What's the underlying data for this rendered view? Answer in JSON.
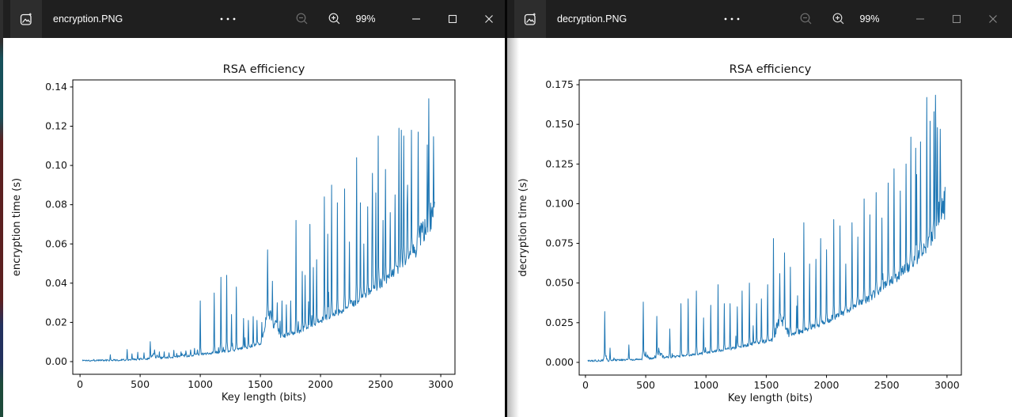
{
  "windows": [
    {
      "title": "encryption.PNG",
      "zoom_level": "99%"
    },
    {
      "title": "decryption.PNG",
      "zoom_level": "99%"
    }
  ],
  "icons": {
    "app": "photos-app-icon",
    "more": "see-more-icon",
    "zoom_out": "zoom-out-icon",
    "zoom_in": "zoom-in-icon",
    "minimize": "minimize-icon",
    "maximize": "maximize-icon",
    "close": "close-icon"
  },
  "chart_data": [
    {
      "type": "line",
      "title": "RSA efficiency",
      "xlabel": "Key length (bits)",
      "ylabel": "encryption time (s)",
      "line_color": "#1f77b4",
      "legend": "none",
      "grid": false,
      "xlim": [
        -60,
        3118
      ],
      "ylim": [
        -0.00645,
        0.1436
      ],
      "xticks": [
        0,
        500,
        1000,
        1500,
        2000,
        2500,
        3000
      ],
      "xtick_labels": [
        "0",
        "500",
        "1000",
        "1500",
        "2000",
        "2500",
        "3000"
      ],
      "yticks": [
        0.0,
        0.02,
        0.04,
        0.06,
        0.08,
        0.1,
        0.12,
        0.14
      ],
      "ytick_labels": [
        "0.00",
        "0.02",
        "0.04",
        "0.06",
        "0.08",
        "0.10",
        "0.12",
        "0.14"
      ],
      "x_start": 20,
      "x_end": 2950,
      "x_step": 4,
      "seed": 1337,
      "noise": {
        "base": 0.00045,
        "scale": 0.055,
        "minor_prob": 0.035,
        "minor_scale": 1.0
      },
      "baseline": [
        [
          20,
          0.0006
        ],
        [
          300,
          0.0008
        ],
        [
          500,
          0.0012
        ],
        [
          700,
          0.002
        ],
        [
          900,
          0.003
        ],
        [
          1100,
          0.0045
        ],
        [
          1300,
          0.006
        ],
        [
          1500,
          0.009
        ],
        [
          1600,
          0.011
        ],
        [
          1700,
          0.013
        ],
        [
          1800,
          0.015
        ],
        [
          1900,
          0.018
        ],
        [
          2000,
          0.021
        ],
        [
          2100,
          0.024
        ],
        [
          2200,
          0.027
        ],
        [
          2300,
          0.031
        ],
        [
          2400,
          0.035
        ],
        [
          2500,
          0.04
        ],
        [
          2600,
          0.045
        ],
        [
          2700,
          0.052
        ],
        [
          2800,
          0.059
        ],
        [
          2870,
          0.065
        ],
        [
          2920,
          0.072
        ],
        [
          2950,
          0.079
        ]
      ],
      "bumps": [
        [
          610,
          50,
          0.002
        ],
        [
          1560,
          50,
          0.018
        ],
        [
          1620,
          60,
          0.008
        ],
        [
          2840,
          50,
          0.006
        ],
        [
          2890,
          40,
          0.007
        ]
      ],
      "spikes": [
        [
          250,
          0.0035
        ],
        [
          390,
          0.0062
        ],
        [
          430,
          0.004
        ],
        [
          480,
          0.0048
        ],
        [
          530,
          0.0045
        ],
        [
          585,
          0.0102
        ],
        [
          620,
          0.006
        ],
        [
          660,
          0.005
        ],
        [
          700,
          0.005
        ],
        [
          740,
          0.0045
        ],
        [
          780,
          0.0058
        ],
        [
          840,
          0.005
        ],
        [
          880,
          0.0055
        ],
        [
          920,
          0.006
        ],
        [
          950,
          0.0068
        ],
        [
          975,
          0.006
        ],
        [
          1000,
          0.031
        ],
        [
          1115,
          0.035
        ],
        [
          1170,
          0.043
        ],
        [
          1220,
          0.044
        ],
        [
          1260,
          0.024
        ],
        [
          1300,
          0.038
        ],
        [
          1360,
          0.022
        ],
        [
          1400,
          0.021
        ],
        [
          1440,
          0.023
        ],
        [
          1470,
          0.021
        ],
        [
          1510,
          0.02
        ],
        [
          1560,
          0.057
        ],
        [
          1600,
          0.041
        ],
        [
          1640,
          0.03
        ],
        [
          1680,
          0.031
        ],
        [
          1715,
          0.029
        ],
        [
          1750,
          0.031
        ],
        [
          1796,
          0.072
        ],
        [
          1847,
          0.046
        ],
        [
          1870,
          0.044
        ],
        [
          1911,
          0.07
        ],
        [
          1940,
          0.048
        ],
        [
          1968,
          0.052
        ],
        [
          2030,
          0.084
        ],
        [
          2060,
          0.065
        ],
        [
          2090,
          0.09
        ],
        [
          2140,
          0.081
        ],
        [
          2200,
          0.088
        ],
        [
          2240,
          0.061
        ],
        [
          2300,
          0.104
        ],
        [
          2330,
          0.081
        ],
        [
          2360,
          0.06
        ],
        [
          2390,
          0.079
        ],
        [
          2430,
          0.096
        ],
        [
          2460,
          0.086
        ],
        [
          2480,
          0.115
        ],
        [
          2520,
          0.072
        ],
        [
          2540,
          0.098
        ],
        [
          2580,
          0.076
        ],
        [
          2620,
          0.085
        ],
        [
          2650,
          0.119
        ],
        [
          2672,
          0.118
        ],
        [
          2690,
          0.115
        ],
        [
          2725,
          0.09
        ],
        [
          2755,
          0.118
        ],
        [
          2810,
          0.117
        ],
        [
          2900,
          0.134
        ]
      ]
    },
    {
      "type": "line",
      "title": "RSA efficiency",
      "xlabel": "Key length (bits)",
      "ylabel": "decryption time (s)",
      "line_color": "#1f77b4",
      "legend": "none",
      "grid": false,
      "xlim": [
        -52,
        3119
      ],
      "ylim": [
        -0.008,
        0.178
      ],
      "xticks": [
        0,
        500,
        1000,
        1500,
        2000,
        2500,
        3000
      ],
      "xtick_labels": [
        "0",
        "500",
        "1000",
        "1500",
        "2000",
        "2500",
        "3000"
      ],
      "yticks": [
        0.0,
        0.025,
        0.05,
        0.075,
        0.1,
        0.125,
        0.15,
        0.175
      ],
      "ytick_labels": [
        "0.000",
        "0.025",
        "0.050",
        "0.075",
        "0.100",
        "0.125",
        "0.150",
        "0.175"
      ],
      "x_start": 20,
      "x_end": 2985,
      "x_step": 4,
      "seed": 7331,
      "noise": {
        "base": 0.0005,
        "scale": 0.055,
        "minor_prob": 0.035,
        "minor_scale": 1.0
      },
      "baseline": [
        [
          20,
          0.001
        ],
        [
          200,
          0.0013
        ],
        [
          400,
          0.0018
        ],
        [
          600,
          0.0028
        ],
        [
          800,
          0.004
        ],
        [
          1000,
          0.006
        ],
        [
          1200,
          0.0085
        ],
        [
          1400,
          0.012
        ],
        [
          1600,
          0.015
        ],
        [
          1800,
          0.02
        ],
        [
          2000,
          0.026
        ],
        [
          2200,
          0.034
        ],
        [
          2400,
          0.043
        ],
        [
          2600,
          0.055
        ],
        [
          2700,
          0.062
        ],
        [
          2800,
          0.07
        ],
        [
          2900,
          0.082
        ],
        [
          2950,
          0.092
        ],
        [
          2985,
          0.1
        ]
      ],
      "bumps": [
        [
          170,
          25,
          0.002
        ],
        [
          500,
          30,
          0.003
        ],
        [
          610,
          40,
          0.003
        ],
        [
          1620,
          70,
          0.013
        ],
        [
          2950,
          45,
          0.008
        ]
      ],
      "spikes": [
        [
          160,
          0.032
        ],
        [
          205,
          0.009
        ],
        [
          360,
          0.011
        ],
        [
          480,
          0.038
        ],
        [
          590,
          0.029
        ],
        [
          700,
          0.021
        ],
        [
          790,
          0.037
        ],
        [
          850,
          0.04
        ],
        [
          920,
          0.045
        ],
        [
          980,
          0.028
        ],
        [
          1040,
          0.036
        ],
        [
          1100,
          0.049
        ],
        [
          1150,
          0.037
        ],
        [
          1200,
          0.037
        ],
        [
          1260,
          0.035
        ],
        [
          1300,
          0.045
        ],
        [
          1360,
          0.05
        ],
        [
          1420,
          0.037
        ],
        [
          1460,
          0.04
        ],
        [
          1510,
          0.049
        ],
        [
          1560,
          0.078
        ],
        [
          1610,
          0.056
        ],
        [
          1650,
          0.069
        ],
        [
          1700,
          0.06
        ],
        [
          1760,
          0.042
        ],
        [
          1810,
          0.088
        ],
        [
          1860,
          0.062
        ],
        [
          1910,
          0.065
        ],
        [
          1950,
          0.078
        ],
        [
          2000,
          0.071
        ],
        [
          2060,
          0.09
        ],
        [
          2110,
          0.086
        ],
        [
          2160,
          0.062
        ],
        [
          2210,
          0.088
        ],
        [
          2260,
          0.079
        ],
        [
          2310,
          0.103
        ],
        [
          2360,
          0.093
        ],
        [
          2410,
          0.107
        ],
        [
          2460,
          0.091
        ],
        [
          2510,
          0.113
        ],
        [
          2560,
          0.122
        ],
        [
          2610,
          0.108
        ],
        [
          2660,
          0.125
        ],
        [
          2700,
          0.142
        ],
        [
          2740,
          0.135
        ],
        [
          2780,
          0.139
        ],
        [
          2830,
          0.167
        ],
        [
          2860,
          0.152
        ],
        [
          2890,
          0.158
        ],
        [
          2920,
          0.148
        ],
        [
          2945,
          0.147
        ]
      ]
    }
  ]
}
